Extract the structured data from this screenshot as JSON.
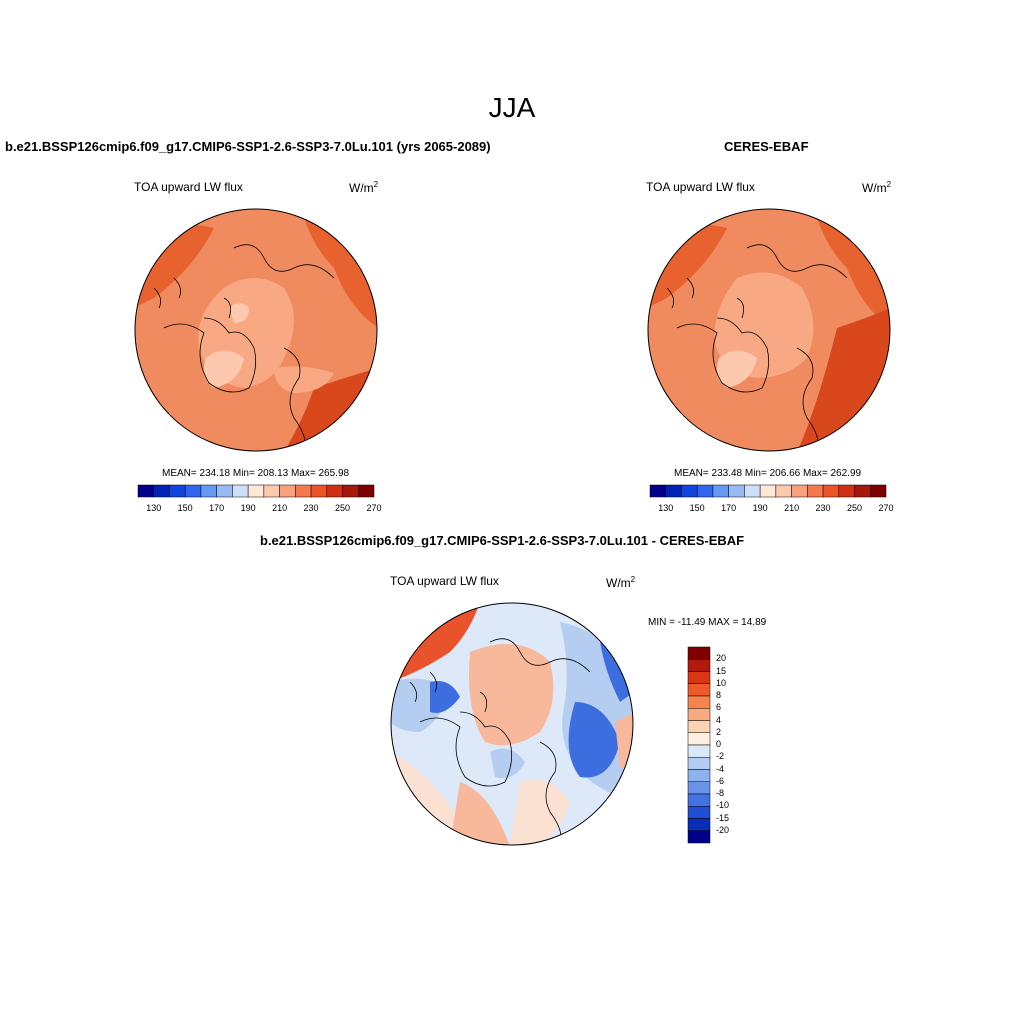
{
  "figure": {
    "title": "JJA",
    "units_base": "W/m",
    "units_exp": "2"
  },
  "panels": {
    "model": {
      "title": "b.e21.BSSP126cmip6.f09_g17.CMIP6-SSP1-2.6-SSP3-7.0Lu.101 (yrs 2065-2089)",
      "variable": "TOA upward LW flux",
      "stats": "MEAN= 234.18  Min= 208.13  Max= 265.98"
    },
    "obs": {
      "title": "CERES-EBAF",
      "variable": "TOA upward LW flux",
      "stats": "MEAN= 233.48  Min= 206.66  Max= 262.99"
    },
    "diff": {
      "title": "b.e21.BSSP126cmip6.f09_g17.CMIP6-SSP1-2.6-SSP3-7.0Lu.101 - CERES-EBAF",
      "variable": "TOA upward LW flux",
      "stats": "MIN = -11.49 MAX =  14.89"
    }
  },
  "colorbars": {
    "main": {
      "colors": [
        "#00008b",
        "#0022b8",
        "#1144dd",
        "#3366ee",
        "#6699f0",
        "#99bbf5",
        "#cce0fa",
        "#fde8d8",
        "#fcc9ae",
        "#f8a27f",
        "#f27a4d",
        "#ea5426",
        "#d23015",
        "#a8170c",
        "#800000"
      ],
      "tick_labels": [
        "130",
        "150",
        "170",
        "190",
        "210",
        "230",
        "250",
        "270"
      ]
    },
    "diff": {
      "colors": [
        "#800000",
        "#b01a0c",
        "#d83614",
        "#ee5a28",
        "#f5844d",
        "#f9aa7e",
        "#fcd2b4",
        "#fdf0e2",
        "#dbe8f8",
        "#b5cdf2",
        "#8fb2ec",
        "#6a94e6",
        "#4373e0",
        "#1f4fd4",
        "#0a2cb8",
        "#00008b"
      ],
      "tick_labels": [
        "20",
        "15",
        "10",
        "8",
        "6",
        "4",
        "2",
        "0",
        "-2",
        "-4",
        "-6",
        "-8",
        "-10",
        "-15",
        "-20"
      ]
    }
  },
  "map_colors": {
    "mid": "#f08a5f",
    "light": "#f8a883",
    "pale": "#fcc8ae",
    "dark": "#e8622f",
    "darker": "#d9471d",
    "diff_pos": "#f7b89b",
    "diff_pos_strong": "#e8532b",
    "diff_neg": "#b6cdf2",
    "diff_neg_strong": "#3d6ee0",
    "diff_pale_neg": "#dde9f9",
    "diff_pale_pos": "#fbe1d1"
  }
}
